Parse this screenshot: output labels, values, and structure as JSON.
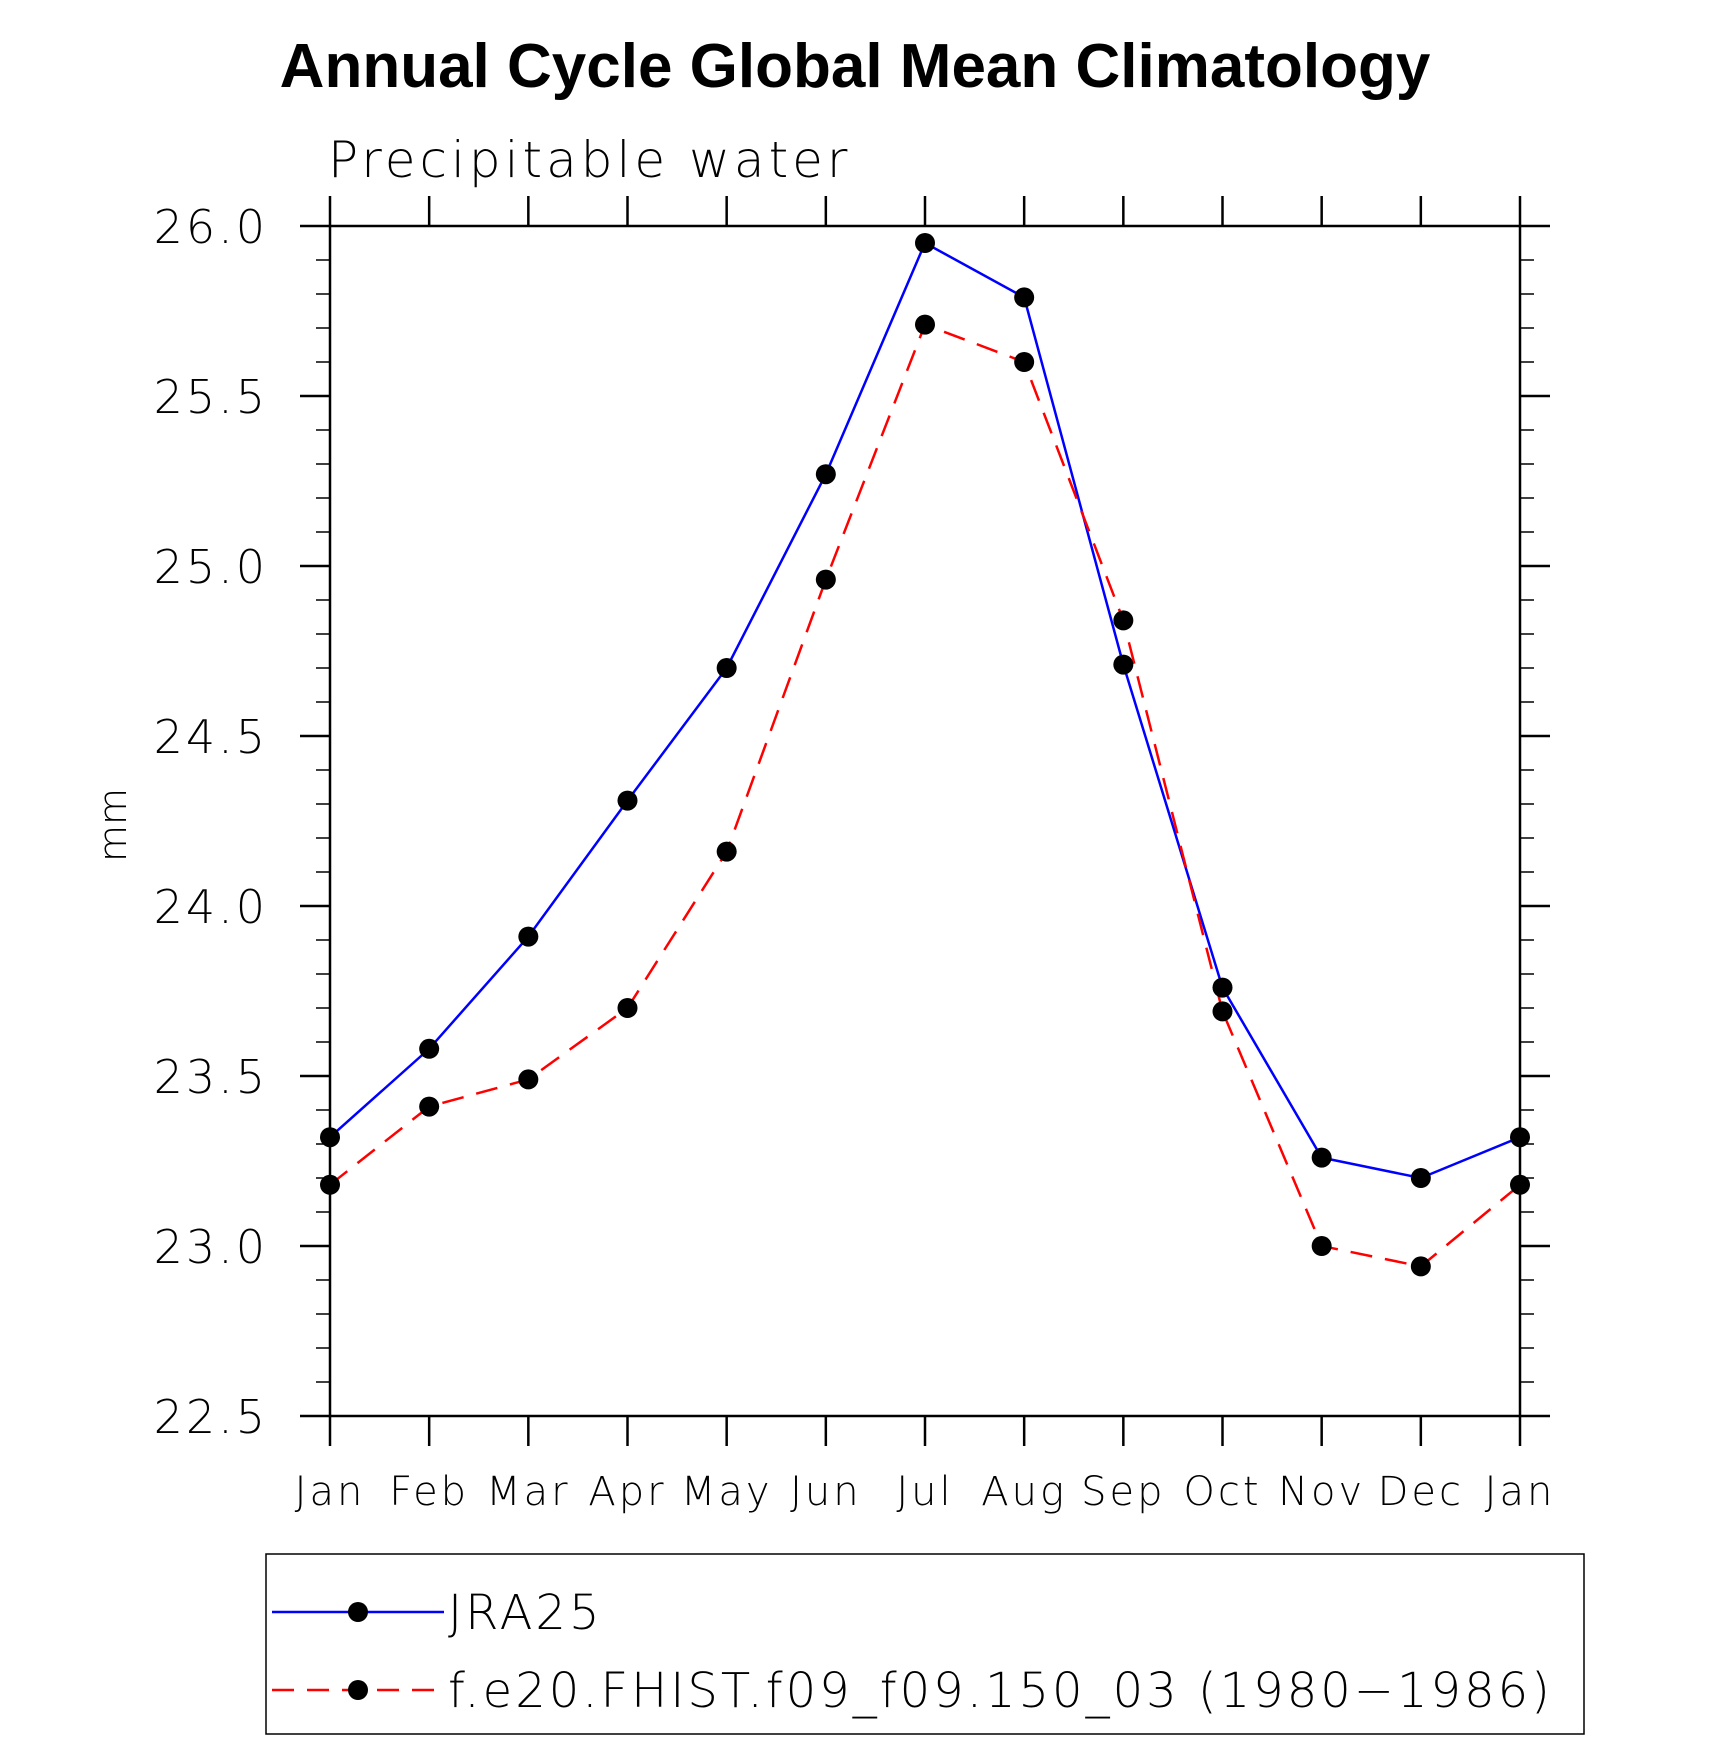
{
  "chart_data": {
    "type": "line",
    "title": "Annual Cycle Global Mean Climatology",
    "subtitle": "Precipitable water",
    "xlabel": "",
    "ylabel": "mm",
    "categories": [
      "Jan",
      "Feb",
      "Mar",
      "Apr",
      "May",
      "Jun",
      "Jul",
      "Aug",
      "Sep",
      "Oct",
      "Nov",
      "Dec",
      "Jan"
    ],
    "ylim": [
      22.5,
      26.0
    ],
    "yticks": [
      "22.5",
      "23.0",
      "23.5",
      "24.0",
      "24.5",
      "25.0",
      "25.5",
      "26.0"
    ],
    "grid": false,
    "legend_position": "bottom",
    "series": [
      {
        "name": "JRA25",
        "color": "#0000ff",
        "dash": "solid",
        "values": [
          23.32,
          23.58,
          23.91,
          24.31,
          24.7,
          25.27,
          25.95,
          25.79,
          24.71,
          23.76,
          23.26,
          23.2,
          23.32
        ]
      },
      {
        "name": "f.e20.FHIST.f09_f09.150_03 (1980−1986)",
        "color": "#ff0000",
        "dash": "dashed",
        "values": [
          23.18,
          23.41,
          23.49,
          23.7,
          24.16,
          24.96,
          25.71,
          25.6,
          24.84,
          23.69,
          23.0,
          22.94,
          23.18
        ]
      }
    ]
  }
}
